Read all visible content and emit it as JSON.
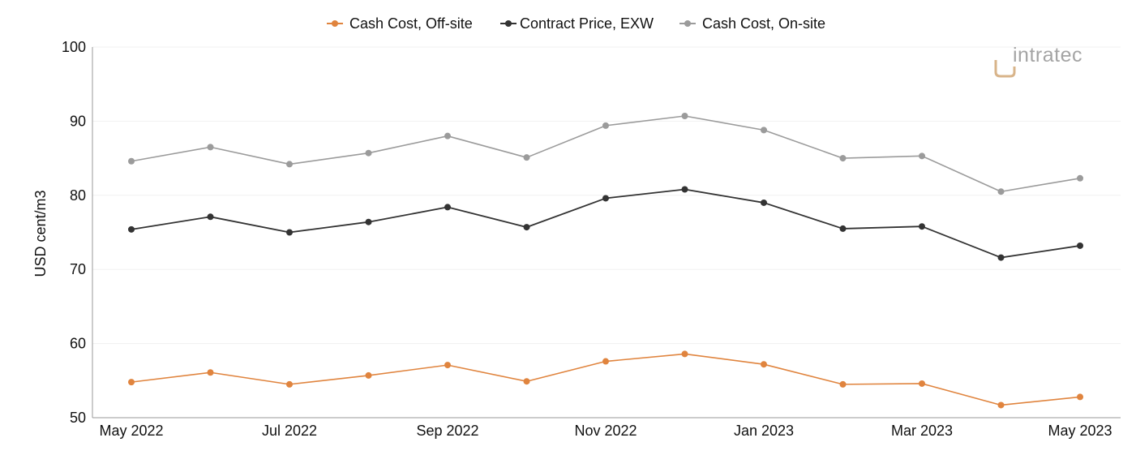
{
  "brand": {
    "name": "intratec",
    "colors": {
      "primary": "#a4a4a4",
      "accent": "#d8b48a"
    }
  },
  "chart_data": {
    "type": "line",
    "ylabel": "USD cent/m3",
    "xlabel": "",
    "ylim": [
      50,
      100
    ],
    "yticks": [
      50,
      60,
      70,
      80,
      90,
      100
    ],
    "grid": true,
    "legend_position": "top-center",
    "x": [
      "May 2022",
      "Jun 2022",
      "Jul 2022",
      "Aug 2022",
      "Sep 2022",
      "Oct 2022",
      "Nov 2022",
      "Dec 2022",
      "Jan 2023",
      "Feb 2023",
      "Mar 2023",
      "Apr 2023",
      "May 2023"
    ],
    "x_tick_labels": [
      "May 2022",
      "",
      "Jul 2022",
      "",
      "Sep 2022",
      "",
      "Nov 2022",
      "",
      "Jan 2023",
      "",
      "Mar 2023",
      "",
      "May 2023"
    ],
    "series": [
      {
        "name": "Cash Cost, Off-site",
        "color": "#e0843e",
        "values": [
          54.8,
          56.1,
          54.5,
          55.7,
          57.1,
          54.9,
          57.6,
          58.6,
          57.2,
          54.5,
          54.6,
          51.7,
          52.8
        ]
      },
      {
        "name": "Contract Price, EXW",
        "color": "#333333",
        "values": [
          75.4,
          77.1,
          75.0,
          76.4,
          78.4,
          75.7,
          79.6,
          80.8,
          79.0,
          75.5,
          75.8,
          71.6,
          73.2
        ]
      },
      {
        "name": "Cash Cost, On-site",
        "color": "#9b9b9b",
        "values": [
          84.6,
          86.5,
          84.2,
          85.7,
          88.0,
          85.1,
          89.4,
          90.7,
          88.8,
          85.0,
          85.3,
          80.5,
          82.3
        ]
      }
    ]
  }
}
